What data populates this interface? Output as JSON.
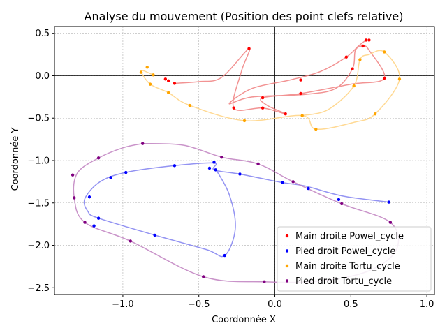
{
  "chart_data": {
    "type": "scatter",
    "title": "Analyse du mouvement (Position des point clefs relative)",
    "xlabel": "Coordonnée X",
    "ylabel": "Coordonnée Y",
    "xlim": [
      -1.45,
      1.05
    ],
    "ylim": [
      -2.58,
      0.58
    ],
    "xticks": [
      -1.0,
      -0.5,
      0.0,
      0.5,
      1.0
    ],
    "xtick_labels": [
      "−1.0",
      "−0.5",
      "0.0",
      "0.5",
      "1.0"
    ],
    "yticks": [
      0.5,
      0.0,
      -0.5,
      -1.0,
      -1.5,
      -2.0,
      -2.5
    ],
    "ytick_labels": [
      "0.5",
      "0.0",
      "−0.5",
      "−1.0",
      "−1.5",
      "−2.0",
      "−2.5"
    ],
    "grid": true,
    "reference_lines": {
      "x": 0,
      "y": 0
    },
    "legend_position": "lower-right",
    "series": [
      {
        "name": "Main droite Powel_cycle",
        "color": "#ff0000",
        "curve_color": "#f08080",
        "points": [
          [
            -0.17,
            0.32
          ],
          [
            -0.08,
            -0.26
          ],
          [
            -0.08,
            -0.38
          ],
          [
            -0.27,
            -0.38
          ],
          [
            0.07,
            -0.45
          ],
          [
            0.17,
            -0.21
          ],
          [
            0.17,
            -0.05
          ],
          [
            0.47,
            0.22
          ],
          [
            0.51,
            0.08
          ],
          [
            0.58,
            0.35
          ],
          [
            0.6,
            0.42
          ],
          [
            0.62,
            0.42
          ],
          [
            0.72,
            -0.03
          ],
          [
            -0.72,
            -0.04
          ],
          [
            -0.7,
            -0.06
          ],
          [
            -0.66,
            -0.09
          ]
        ],
        "curve": [
          [
            -0.66,
            -0.09
          ],
          [
            -0.5,
            -0.07
          ],
          [
            -0.35,
            -0.02
          ],
          [
            -0.17,
            0.32
          ],
          [
            -0.22,
            0.05
          ],
          [
            -0.27,
            -0.38
          ],
          [
            -0.08,
            -0.38
          ],
          [
            0.07,
            -0.45
          ],
          [
            -0.05,
            -0.35
          ],
          [
            -0.08,
            -0.26
          ],
          [
            0.17,
            -0.21
          ],
          [
            0.5,
            -0.1
          ],
          [
            0.72,
            -0.03
          ],
          [
            0.62,
            0.3
          ],
          [
            0.58,
            0.35
          ],
          [
            0.53,
            0.3
          ],
          [
            0.51,
            0.08
          ],
          [
            0.4,
            -0.15
          ],
          [
            0.2,
            -0.22
          ],
          [
            -0.15,
            -0.25
          ],
          [
            -0.3,
            -0.33
          ],
          [
            -0.15,
            -0.15
          ],
          [
            0.1,
            -0.05
          ],
          [
            0.3,
            0.05
          ],
          [
            0.47,
            0.22
          ],
          [
            0.55,
            0.35
          ],
          [
            0.6,
            0.42
          ]
        ]
      },
      {
        "name": "Pied droit Powel_cycle",
        "color": "#0000ff",
        "curve_color": "#8080f0",
        "points": [
          [
            -0.4,
            -1.02
          ],
          [
            -0.39,
            -1.11
          ],
          [
            -0.43,
            -1.09
          ],
          [
            -0.23,
            -1.16
          ],
          [
            -0.66,
            -1.06
          ],
          [
            -0.98,
            -1.14
          ],
          [
            -1.08,
            -1.2
          ],
          [
            -1.16,
            -1.68
          ],
          [
            -1.22,
            -1.43
          ],
          [
            -1.19,
            -1.77
          ],
          [
            -0.79,
            -1.88
          ],
          [
            -0.33,
            -2.12
          ],
          [
            0.05,
            -1.26
          ],
          [
            0.22,
            -1.33
          ],
          [
            0.42,
            -1.46
          ],
          [
            0.75,
            -1.49
          ]
        ],
        "curve": [
          [
            0.75,
            -1.49
          ],
          [
            0.45,
            -1.42
          ],
          [
            0.2,
            -1.3
          ],
          [
            0.05,
            -1.26
          ],
          [
            -0.23,
            -1.16
          ],
          [
            -0.4,
            -1.11
          ],
          [
            -0.4,
            -1.03
          ],
          [
            -0.66,
            -1.06
          ],
          [
            -0.98,
            -1.14
          ],
          [
            -1.15,
            -1.25
          ],
          [
            -1.25,
            -1.45
          ],
          [
            -1.23,
            -1.6
          ],
          [
            -1.16,
            -1.68
          ],
          [
            -0.79,
            -1.88
          ],
          [
            -0.45,
            -2.05
          ],
          [
            -0.33,
            -2.12
          ],
          [
            -0.26,
            -1.8
          ],
          [
            -0.3,
            -1.4
          ],
          [
            -0.39,
            -1.1
          ]
        ]
      },
      {
        "name": "Main droite Tortu_cycle",
        "color": "#ffa500",
        "curve_color": "#ffd280",
        "points": [
          [
            -0.88,
            0.04
          ],
          [
            -0.84,
            0.1
          ],
          [
            -0.8,
            0.01
          ],
          [
            -0.82,
            -0.1
          ],
          [
            -0.7,
            -0.2
          ],
          [
            -0.56,
            -0.35
          ],
          [
            -0.2,
            -0.53
          ],
          [
            0.18,
            -0.47
          ],
          [
            0.27,
            -0.63
          ],
          [
            0.52,
            -0.12
          ],
          [
            0.56,
            0.19
          ],
          [
            0.66,
            -0.45
          ],
          [
            0.72,
            0.28
          ],
          [
            0.82,
            -0.04
          ]
        ],
        "curve": [
          [
            -0.8,
            0.01
          ],
          [
            -0.88,
            0.06
          ],
          [
            -0.82,
            -0.1
          ],
          [
            -0.7,
            -0.2
          ],
          [
            -0.56,
            -0.35
          ],
          [
            -0.2,
            -0.53
          ],
          [
            0.18,
            -0.47
          ],
          [
            0.27,
            -0.63
          ],
          [
            0.52,
            -0.55
          ],
          [
            0.66,
            -0.45
          ],
          [
            0.82,
            -0.04
          ],
          [
            0.72,
            0.28
          ],
          [
            0.62,
            0.25
          ],
          [
            0.56,
            0.19
          ],
          [
            0.52,
            -0.12
          ],
          [
            0.35,
            -0.4
          ],
          [
            0.18,
            -0.47
          ]
        ]
      },
      {
        "name": "Pied droit Tortu_cycle",
        "color": "#800080",
        "curve_color": "#c080c0",
        "points": [
          [
            -0.87,
            -0.8
          ],
          [
            -0.35,
            -0.96
          ],
          [
            -0.11,
            -1.04
          ],
          [
            0.12,
            -1.25
          ],
          [
            0.44,
            -1.51
          ],
          [
            0.76,
            -1.73
          ],
          [
            -1.16,
            -0.97
          ],
          [
            -1.33,
            -1.17
          ],
          [
            -1.32,
            -1.44
          ],
          [
            -1.25,
            -1.73
          ],
          [
            -0.95,
            -1.95
          ],
          [
            -0.47,
            -2.37
          ],
          [
            -0.07,
            -2.43
          ]
        ],
        "curve": [
          [
            -0.87,
            -0.8
          ],
          [
            -0.6,
            -0.82
          ],
          [
            -0.35,
            -0.96
          ],
          [
            -0.11,
            -1.04
          ],
          [
            0.12,
            -1.25
          ],
          [
            0.44,
            -1.51
          ],
          [
            0.76,
            -1.73
          ],
          [
            0.8,
            -2.05
          ],
          [
            0.62,
            -2.3
          ],
          [
            0.3,
            -2.42
          ],
          [
            -0.07,
            -2.43
          ],
          [
            -0.47,
            -2.37
          ],
          [
            -0.95,
            -1.95
          ],
          [
            -1.25,
            -1.73
          ],
          [
            -1.32,
            -1.44
          ],
          [
            -1.3,
            -1.15
          ],
          [
            -1.16,
            -0.97
          ],
          [
            -1.0,
            -0.85
          ],
          [
            -0.87,
            -0.8
          ]
        ]
      }
    ]
  }
}
